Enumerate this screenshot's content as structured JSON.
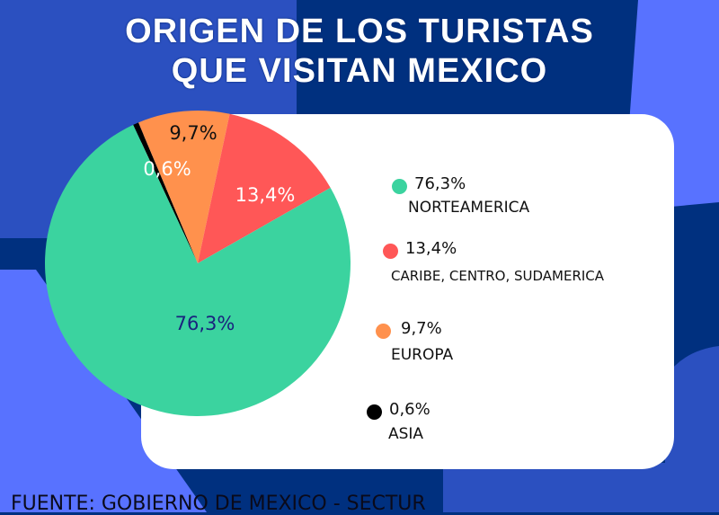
{
  "title": {
    "line1": "ORIGEN DE LOS TURISTAS",
    "line2": "QUE VISITAN  MEXICO"
  },
  "source": "FUENTE: GOBIERNO DE MEXICO - SECTUR",
  "colors": {
    "background_dark": "#00307f",
    "background_mid": "#2b50c0",
    "background_light": "#5872ff",
    "card": "#ffffff"
  },
  "chart_data": {
    "type": "pie",
    "title": "ORIGEN DE LOS TURISTAS QUE VISITAN  MEXICO",
    "legend_placement": "right",
    "slices": [
      {
        "name": "ASIA",
        "value": 0.6,
        "label": "0,6%",
        "color": "#000000",
        "label_color": "#ffffff"
      },
      {
        "name": "EUROPA",
        "value": 9.7,
        "label": "9,7%",
        "color": "#ff914d",
        "label_color": "#111111"
      },
      {
        "name": "CARIBE, CENTRO, SUDAMERICA",
        "value": 13.4,
        "label": "13,4%",
        "color": "#ff5757",
        "label_color": "#ffffff"
      },
      {
        "name": "NORTEAMERICA",
        "value": 76.3,
        "label": "76,3%",
        "color": "#3bd39f",
        "label_color": "#1a237e"
      }
    ]
  },
  "legend": [
    {
      "pct": "76,3%",
      "name": "NORTEAMERICA",
      "color": "#3bd39f"
    },
    {
      "pct": "13,4%",
      "name": "CARIBE, CENTRO, SUDAMERICA",
      "color": "#ff5757"
    },
    {
      "pct": "9,7%",
      "name": "EUROPA",
      "color": "#ff914d"
    },
    {
      "pct": "0,6%",
      "name": "ASIA",
      "color": "#000000"
    }
  ]
}
